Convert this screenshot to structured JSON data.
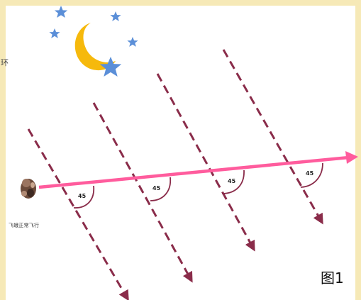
{
  "figure": {
    "label": "图1",
    "angle_label": "45",
    "moth_caption": "飞蛾正常飞行",
    "edge_mark": "环"
  },
  "colors": {
    "background": "#f6e9b7",
    "flight_path": "#ff5c9d",
    "light_rays": "#8a2c4a",
    "moon": "#f6b90c",
    "stars": "#5b8fd8",
    "angle_arc": "#8a2c4a"
  },
  "icons": [
    "moon-icon",
    "star-icon",
    "moth-icon"
  ]
}
